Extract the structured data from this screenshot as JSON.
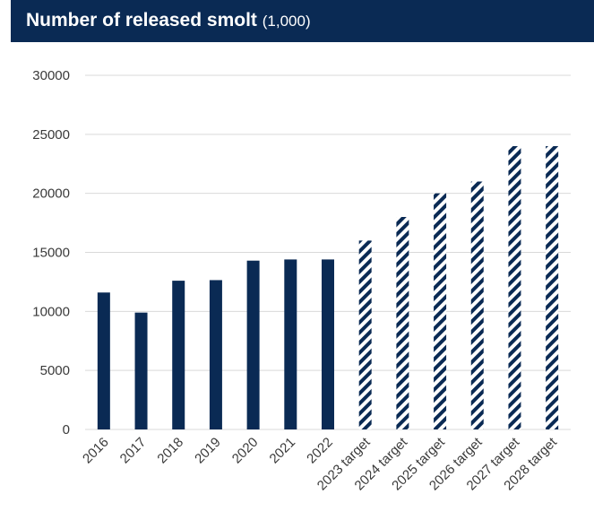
{
  "chart_data": {
    "type": "bar",
    "title": "Number of released smolt",
    "title_unit": "(1,000)",
    "categories": [
      "2016",
      "2017",
      "2018",
      "2019",
      "2020",
      "2021",
      "2022",
      "2023 target",
      "2024 target",
      "2025 target",
      "2026 target",
      "2027 target",
      "2028 target"
    ],
    "values": [
      11600,
      9900,
      12600,
      12650,
      14300,
      14400,
      14400,
      16000,
      18000,
      20000,
      21000,
      24000,
      24000
    ],
    "kinds": [
      "actual",
      "actual",
      "actual",
      "actual",
      "actual",
      "actual",
      "actual",
      "target",
      "target",
      "target",
      "target",
      "target",
      "target"
    ],
    "ylim": [
      0,
      30000
    ],
    "yticks": [
      "0",
      "5000",
      "10000",
      "15000",
      "20000",
      "25000",
      "30000"
    ],
    "grid": true,
    "legend": "none",
    "colors": {
      "bar": "#0a2a54",
      "header": "#0a2a54",
      "grid": "#d9d9d9",
      "text": "#3a3a3a"
    }
  }
}
